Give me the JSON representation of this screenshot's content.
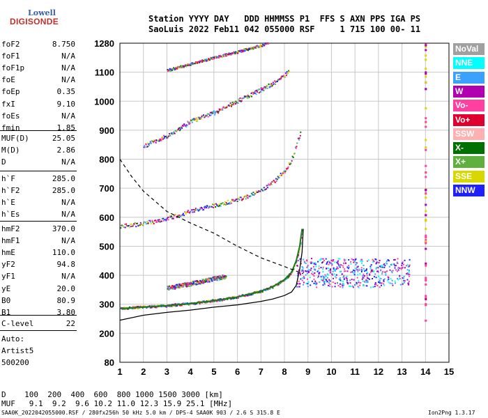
{
  "logo": {
    "line1": "Lowell",
    "line2": "DIGISONDE"
  },
  "header": {
    "row1": "Station YYYY DAY   DDD HHMMSS P1  FFS S AXN PPS IGA PS",
    "row2": "SaoLuis 2022 Feb11 042 055000 RSF     1 715 100 00- 11"
  },
  "params_a": [
    {
      "k": "foF2",
      "v": "8.750"
    },
    {
      "k": "foF1",
      "v": "N/A"
    },
    {
      "k": "foF1p",
      "v": "N/A"
    },
    {
      "k": "foE",
      "v": "N/A"
    },
    {
      "k": "foEp",
      "v": "0.35"
    },
    {
      "k": "fxI",
      "v": "9.10"
    },
    {
      "k": "foEs",
      "v": "N/A"
    },
    {
      "k": "fmin",
      "v": "1.85"
    }
  ],
  "params_b": [
    {
      "k": "MUF(D)",
      "v": "25.05"
    },
    {
      "k": "M(D)",
      "v": "2.86"
    },
    {
      "k": "D",
      "v": "N/A"
    }
  ],
  "params_c": [
    {
      "k": "h`F",
      "v": "285.0"
    },
    {
      "k": "h`F2",
      "v": "285.0"
    },
    {
      "k": "h`E",
      "v": "N/A"
    },
    {
      "k": "h`Es",
      "v": "N/A"
    }
  ],
  "params_d": [
    {
      "k": "hmF2",
      "v": "370.0"
    },
    {
      "k": "hmF1",
      "v": "N/A"
    },
    {
      "k": "hmE",
      "v": "110.0"
    },
    {
      "k": "yF2",
      "v": "94.8"
    },
    {
      "k": "yF1",
      "v": "N/A"
    },
    {
      "k": "yE",
      "v": "20.0"
    },
    {
      "k": "B0",
      "v": "80.9"
    },
    {
      "k": "B1",
      "v": "3.80"
    }
  ],
  "params_e": [
    {
      "k": "C-level",
      "v": "22"
    }
  ],
  "auto": {
    "line1": "Auto:",
    "line2": "Artist5",
    "line3": "500200"
  },
  "legend": [
    {
      "label": "NoVal",
      "color": "#a0a0a0"
    },
    {
      "label": "NNE",
      "color": "#00ffff"
    },
    {
      "label": "E",
      "color": "#3ca0ff"
    },
    {
      "label": "W",
      "color": "#b000b0"
    },
    {
      "label": "Vo-",
      "color": "#ff40a0"
    },
    {
      "label": "Vo+",
      "color": "#e00030"
    },
    {
      "label": "SSW",
      "color": "#ffb0b0"
    },
    {
      "label": "X-",
      "color": "#007000"
    },
    {
      "label": "X+",
      "color": "#60b040"
    },
    {
      "label": "SSE",
      "color": "#d8d800"
    },
    {
      "label": "NNW",
      "color": "#2020ff"
    }
  ],
  "footer": {
    "d_row": "D    100  200  400  600  800 1000 1500 3000 [km]",
    "muf_row": "MUF   9.1  9.2  9.6 10.2 11.0 12.3 15.9 25.1 [MHz]",
    "info": "SAA0K_2022042055000.RSF / 280fx256h 50 kHz 5.0 km / DPS-4 SAA0K 903 / 2.6 S 315.8 E",
    "version": "Ion2Png 1.3.17"
  },
  "chart_data": {
    "type": "scatter",
    "xlim": [
      1,
      15
    ],
    "x_ticks": [
      1,
      2,
      3,
      4,
      5,
      6,
      7,
      8,
      9,
      10,
      11,
      12,
      13,
      14,
      15
    ],
    "y_ticks": [
      80,
      200,
      300,
      400,
      500,
      600,
      700,
      800,
      900,
      1000,
      1100,
      1280
    ],
    "grid": true,
    "traces": [
      {
        "mode": "F1",
        "points": [
          [
            1.0,
            285
          ],
          [
            2.0,
            290
          ],
          [
            3.0,
            295
          ],
          [
            4.0,
            302
          ],
          [
            5.0,
            312
          ],
          [
            6.0,
            325
          ],
          [
            7.0,
            345
          ],
          [
            7.5,
            360
          ],
          [
            8.0,
            385
          ],
          [
            8.3,
            410
          ],
          [
            8.5,
            450
          ],
          [
            8.65,
            500
          ],
          [
            8.75,
            560
          ]
        ]
      },
      {
        "mode": "F2-multi",
        "points": [
          [
            1.0,
            568
          ],
          [
            2.0,
            578
          ],
          [
            3.0,
            595
          ],
          [
            4.0,
            620
          ],
          [
            5.0,
            640
          ],
          [
            6.0,
            660
          ],
          [
            7.0,
            690
          ],
          [
            7.5,
            720
          ],
          [
            8.0,
            760
          ],
          [
            8.3,
            800
          ],
          [
            8.5,
            850
          ],
          [
            8.7,
            900
          ]
        ]
      },
      {
        "mode": "F3-multi",
        "points": [
          [
            2.0,
            845
          ],
          [
            3.0,
            880
          ],
          [
            4.0,
            930
          ],
          [
            5.0,
            960
          ],
          [
            6.0,
            1000
          ],
          [
            7.0,
            1040
          ],
          [
            7.5,
            1060
          ],
          [
            8.0,
            1090
          ],
          [
            8.2,
            1110
          ]
        ]
      },
      {
        "mode": "F4-multi",
        "points": [
          [
            3.0,
            1110
          ],
          [
            4.0,
            1150
          ],
          [
            5.0,
            1190
          ],
          [
            6.0,
            1225
          ],
          [
            7.0,
            1265
          ],
          [
            7.3,
            1280
          ]
        ]
      },
      {
        "mode": "F1-weak",
        "points": [
          [
            3.0,
            355
          ],
          [
            4.0,
            370
          ],
          [
            5.0,
            388
          ],
          [
            5.5,
            395
          ]
        ]
      }
    ],
    "profile_solid": [
      [
        1.0,
        245
      ],
      [
        2.0,
        262
      ],
      [
        3.0,
        272
      ],
      [
        4.0,
        280
      ],
      [
        5.0,
        290
      ],
      [
        6.0,
        298
      ],
      [
        7.0,
        310
      ],
      [
        7.5,
        318
      ],
      [
        8.0,
        330
      ],
      [
        8.3,
        342
      ],
      [
        8.5,
        365
      ],
      [
        8.65,
        420
      ],
      [
        8.75,
        480
      ],
      [
        8.8,
        560
      ]
    ],
    "muf_dashed": [
      [
        1.0,
        800
      ],
      [
        1.5,
        740
      ],
      [
        2.0,
        690
      ],
      [
        3.0,
        620
      ],
      [
        4.0,
        580
      ],
      [
        5.0,
        545
      ],
      [
        6.0,
        500
      ],
      [
        7.0,
        460
      ],
      [
        8.0,
        430
      ],
      [
        8.8,
        405
      ]
    ]
  }
}
